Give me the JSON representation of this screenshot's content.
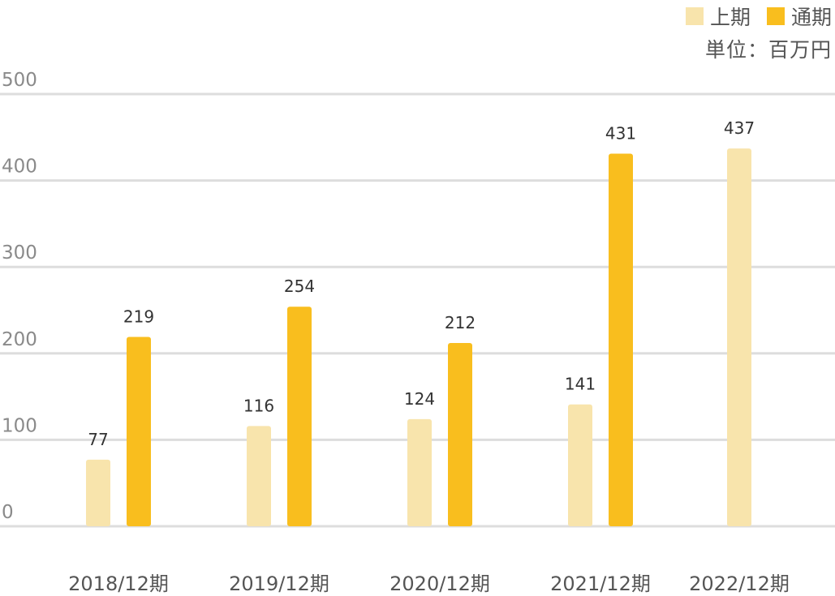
{
  "chart_data": {
    "type": "bar",
    "categories": [
      "2018/12期",
      "2019/12期",
      "2020/12期",
      "2021/12期",
      "2022/12期"
    ],
    "series": [
      {
        "name": "上期",
        "color": "#F8E4AC",
        "values": [
          77,
          116,
          124,
          141,
          437
        ]
      },
      {
        "name": "通期",
        "color": "#F9BE1E",
        "values": [
          219,
          254,
          212,
          431,
          null
        ]
      }
    ],
    "unit_label": "単位：百万円",
    "y_ticks": [
      "0",
      "100",
      "200",
      "300",
      "400",
      "500"
    ],
    "ylim": [
      0,
      500
    ],
    "grid": true,
    "legend_position": "top-right",
    "gridline_color": "#dddddd"
  }
}
